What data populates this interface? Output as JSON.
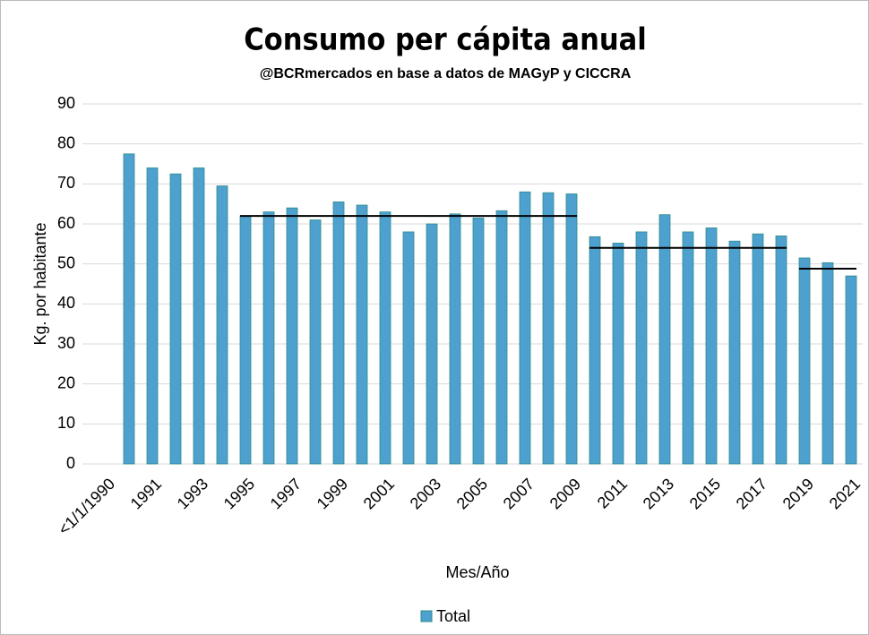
{
  "chart_data": {
    "type": "bar",
    "title": "Consumo per cápita anual",
    "subtitle": "@BCRmercados en base a datos de MAGyP y CICCRA",
    "y_label": "Kg. por habitante",
    "x_label": "Mes/Año",
    "categories": [
      "<1/1/1990",
      null,
      "1991",
      null,
      "1993",
      null,
      "1995",
      null,
      "1997",
      null,
      "1999",
      null,
      "2001",
      null,
      "2003",
      null,
      "2005",
      null,
      "2007",
      null,
      "2009",
      null,
      "2011",
      null,
      "2013",
      null,
      "2015",
      null,
      "2017",
      null,
      "2019",
      null,
      "2021"
    ],
    "series": [
      {
        "name": "Total",
        "color": "#4ea0cf",
        "values": [
          null,
          77.5,
          74,
          72.5,
          74,
          69.5,
          62,
          63,
          64,
          61,
          65.5,
          64.7,
          63,
          58,
          60,
          62.5,
          61.5,
          63.3,
          68,
          67.8,
          67.5,
          56.8,
          55.2,
          58,
          62.3,
          58,
          59,
          55.7,
          57.5,
          57,
          51.5,
          50.3,
          47
        ]
      }
    ],
    "average_lines": [
      {
        "value": 62,
        "x_start": 1995,
        "x_end": 2009
      },
      {
        "value": 54,
        "x_start": 2010,
        "x_end": 2018
      },
      {
        "value": 48.8,
        "x_start": 2019,
        "x_end": 2021
      }
    ],
    "ylim": [
      0,
      90
    ],
    "yticks": [
      0,
      10,
      20,
      30,
      40,
      50,
      60,
      70,
      80,
      90
    ],
    "grid": true,
    "legend": "bottom"
  }
}
